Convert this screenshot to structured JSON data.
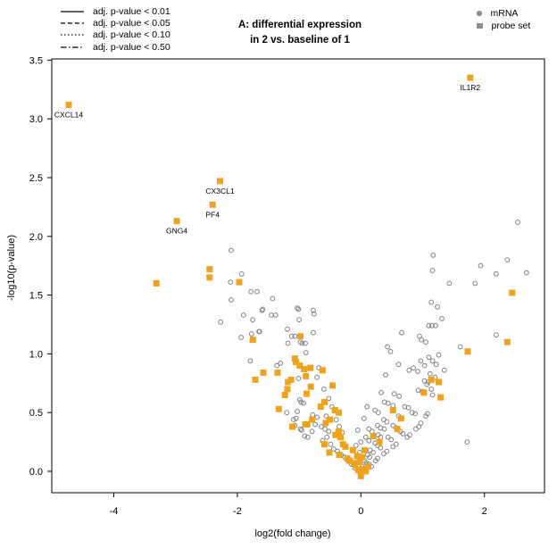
{
  "figure": {
    "title_line1": "A: differential expression",
    "title_line2": "in 2 vs. baseline of 1"
  },
  "line_legend": {
    "items": [
      {
        "style": "solid",
        "label": "adj. p-value < 0.01"
      },
      {
        "style": "dashed",
        "label": "adj. p-value < 0.05"
      },
      {
        "style": "dotted",
        "label": "adj. p-value < 0.10"
      },
      {
        "style": "dashdot",
        "label": "adj. p-value < 0.50"
      }
    ],
    "line_color": "#000000"
  },
  "marker_legend": {
    "items": [
      {
        "marker": "circle",
        "label": "mRNA"
      },
      {
        "marker": "square",
        "label": "probe set"
      }
    ],
    "marker_color": "#8A8E8F"
  },
  "chart_data": {
    "type": "scatter",
    "title": "A: differential expression in 2 vs. baseline of 1",
    "xlabel": "log2(fold change)",
    "ylabel": "-log10(p-value)",
    "xlim": [
      -5.0,
      3.0
    ],
    "ylim": [
      0.0,
      3.5
    ],
    "grid": false,
    "x_ticks": [
      {
        "v": -4,
        "label": "-4"
      },
      {
        "v": -2,
        "label": "-2"
      },
      {
        "v": 0,
        "label": "0"
      },
      {
        "v": 2,
        "label": "2"
      }
    ],
    "y_ticks": [
      {
        "v": 0.0,
        "label": "0.0"
      },
      {
        "v": 0.5,
        "label": "0.5"
      },
      {
        "v": 1.0,
        "label": "1.0"
      },
      {
        "v": 1.5,
        "label": "1.5"
      },
      {
        "v": 2.0,
        "label": "2.0"
      },
      {
        "v": 2.5,
        "label": "2.5"
      },
      {
        "v": 3.0,
        "label": "3.0"
      },
      {
        "v": 3.5,
        "label": "3.5"
      }
    ],
    "labeled_points": [
      {
        "label": "CXCL14",
        "x": -4.73,
        "y": 3.12
      },
      {
        "label": "IL1R2",
        "x": 1.77,
        "y": 3.35
      },
      {
        "label": "CX3CL1",
        "x": -2.28,
        "y": 2.47
      },
      {
        "label": "PF4",
        "x": -2.4,
        "y": 2.27
      },
      {
        "label": "GNG4",
        "x": -2.98,
        "y": 2.13
      }
    ],
    "series": [
      {
        "name": "mRNA",
        "marker": "circle",
        "color": "#7E8385",
        "fill": "none",
        "points": [
          [
            2.54,
            2.12
          ],
          [
            2.37,
            1.8
          ],
          [
            1.94,
            1.75
          ],
          [
            2.19,
            1.68
          ],
          [
            2.68,
            1.69
          ],
          [
            1.85,
            1.6
          ],
          [
            1.43,
            1.6
          ],
          [
            1.17,
            1.84
          ],
          [
            1.16,
            1.71
          ],
          [
            1.14,
            1.44
          ],
          [
            1.24,
            1.4
          ],
          [
            1.31,
            1.3
          ],
          [
            1.1,
            1.24
          ],
          [
            1.15,
            1.24
          ],
          [
            1.21,
            1.24
          ],
          [
            0.66,
            1.18
          ],
          [
            0.95,
            1.15
          ],
          [
            0.98,
            1.12
          ],
          [
            1.05,
            1.1
          ],
          [
            2.19,
            1.16
          ],
          [
            1.61,
            1.06
          ],
          [
            1.72,
            0.25
          ],
          [
            0.97,
            0.41
          ],
          [
            1.1,
            0.97
          ],
          [
            1.16,
            0.94
          ],
          [
            1.22,
            0.91
          ],
          [
            1.26,
            0.99
          ],
          [
            0.97,
            0.94
          ],
          [
            1.03,
            0.9
          ],
          [
            1.12,
            0.83
          ],
          [
            1.2,
            0.8
          ],
          [
            1.07,
            0.74
          ],
          [
            1.14,
            0.7
          ],
          [
            1.16,
            0.65
          ],
          [
            1.35,
            0.86
          ],
          [
            -2.1,
            1.88
          ],
          [
            -1.93,
            1.68
          ],
          [
            -2.11,
            1.61
          ],
          [
            -1.78,
            1.53
          ],
          [
            -1.68,
            1.53
          ],
          [
            -2.1,
            1.46
          ],
          [
            -1.43,
            1.47
          ],
          [
            -1.59,
            1.38
          ],
          [
            -1.9,
            1.33
          ],
          [
            -1.45,
            1.33
          ],
          [
            -1.38,
            1.33
          ],
          [
            -1.01,
            1.38
          ],
          [
            -0.77,
            1.37
          ],
          [
            -0.76,
            1.34
          ],
          [
            -1.0,
            1.29
          ],
          [
            -1.75,
            1.29
          ],
          [
            -2.27,
            1.27
          ],
          [
            -1.94,
            1.14
          ],
          [
            -1.77,
            1.17
          ],
          [
            -1.65,
            1.19
          ],
          [
            -1.19,
            1.21
          ],
          [
            -1.12,
            1.15
          ],
          [
            -1.07,
            1.15
          ],
          [
            -1.18,
            1.09
          ],
          [
            -0.77,
            1.18
          ],
          [
            -0.95,
            1.09
          ],
          [
            -1.64,
            1.19
          ],
          [
            -1.6,
            1.37
          ],
          [
            -1.03,
            1.39
          ],
          [
            -1.79,
            0.94
          ],
          [
            -1.36,
            0.9
          ],
          [
            -1.3,
            0.92
          ],
          [
            -1.2,
            0.5
          ],
          [
            -1.09,
            0.44
          ],
          [
            -1.05,
            0.45
          ],
          [
            -1.03,
            0.51
          ],
          [
            -0.97,
            0.59
          ],
          [
            -0.93,
            0.58
          ],
          [
            -0.99,
            0.61
          ],
          [
            -0.96,
            0.35
          ],
          [
            -0.91,
            0.3
          ],
          [
            -1.01,
            0.79
          ],
          [
            -0.9,
            1.09
          ],
          [
            -0.89,
            1.01
          ],
          [
            -0.71,
            0.8
          ],
          [
            -1.07,
            0.39
          ],
          [
            -0.98,
            0.36
          ],
          [
            -0.78,
            0.48
          ],
          [
            -0.71,
            0.46
          ],
          [
            -0.74,
            0.4
          ],
          [
            -0.64,
            0.38
          ],
          [
            -0.58,
            0.36
          ],
          [
            -0.52,
            0.34
          ],
          [
            -0.79,
            0.34
          ],
          [
            -0.86,
            0.29
          ],
          [
            -0.55,
            0.29
          ],
          [
            -0.62,
            0.26
          ],
          [
            -0.49,
            0.23
          ],
          [
            -0.44,
            0.19
          ],
          [
            -0.38,
            0.17
          ],
          [
            -0.32,
            0.14
          ],
          [
            -0.26,
            0.12
          ],
          [
            -0.21,
            0.09
          ],
          [
            -0.15,
            0.06
          ],
          [
            -0.1,
            0.03
          ],
          [
            -0.6,
            0.7
          ],
          [
            -0.52,
            0.62
          ],
          [
            -0.47,
            0.55
          ],
          [
            -0.4,
            0.44
          ],
          [
            -0.35,
            0.38
          ],
          [
            -0.3,
            0.33
          ],
          [
            -0.68,
            0.88
          ],
          [
            -0.56,
            0.47
          ],
          [
            -0.98,
            1.1
          ],
          [
            0.43,
            1.06
          ],
          [
            0.61,
            0.91
          ],
          [
            0.4,
            0.82
          ],
          [
            0.78,
            0.86
          ],
          [
            0.85,
            0.88
          ],
          [
            0.92,
            0.85
          ],
          [
            1.03,
            0.77
          ],
          [
            1.09,
            0.76
          ],
          [
            0.93,
            0.69
          ],
          [
            0.99,
            0.68
          ],
          [
            0.33,
            0.67
          ],
          [
            0.54,
            0.66
          ],
          [
            0.62,
            0.64
          ],
          [
            0.38,
            0.59
          ],
          [
            0.44,
            0.58
          ],
          [
            0.52,
            0.56
          ],
          [
            0.23,
            0.52
          ],
          [
            0.28,
            0.5
          ],
          [
            0.71,
            0.55
          ],
          [
            0.77,
            0.54
          ],
          [
            0.83,
            0.5
          ],
          [
            0.88,
            0.49
          ],
          [
            0.61,
            0.47
          ],
          [
            0.66,
            0.45
          ],
          [
            0.37,
            0.44
          ],
          [
            0.42,
            0.42
          ],
          [
            0.27,
            0.39
          ],
          [
            0.32,
            0.37
          ],
          [
            0.38,
            0.36
          ],
          [
            0.52,
            0.39
          ],
          [
            0.57,
            0.37
          ],
          [
            0.64,
            0.34
          ],
          [
            0.68,
            0.32
          ],
          [
            0.44,
            0.29
          ],
          [
            0.49,
            0.27
          ],
          [
            0.32,
            0.29
          ],
          [
            0.28,
            0.31
          ],
          [
            0.18,
            0.34
          ],
          [
            0.13,
            0.36
          ],
          [
            0.08,
            0.29
          ],
          [
            0.13,
            0.26
          ],
          [
            0.23,
            0.24
          ],
          [
            0.27,
            0.22
          ],
          [
            0.32,
            0.2
          ],
          [
            0.15,
            0.18
          ],
          [
            0.2,
            0.16
          ],
          [
            0.11,
            0.14
          ],
          [
            0.14,
            0.12
          ],
          [
            0.06,
            0.09
          ],
          [
            0.09,
            0.07
          ],
          [
            0.02,
            0.04
          ],
          [
            0.05,
            0.02
          ],
          [
            0.13,
            0.06
          ],
          [
            0.17,
            0.04
          ],
          [
            0.24,
            0.09
          ],
          [
            0.27,
            0.11
          ],
          [
            0.37,
            0.15
          ],
          [
            0.42,
            0.17
          ],
          [
            0.52,
            0.21
          ],
          [
            0.57,
            0.23
          ],
          [
            0.75,
            0.29
          ],
          [
            0.79,
            0.31
          ],
          [
            0.89,
            0.36
          ],
          [
            0.94,
            0.38
          ],
          [
            1.05,
            0.47
          ],
          [
            1.08,
            0.49
          ],
          [
            0.48,
            1.02
          ],
          [
            0.1,
            0.55
          ],
          [
            0.05,
            0.45
          ],
          [
            -0.05,
            0.35
          ],
          [
            0.0,
            0.25
          ],
          [
            -0.08,
            0.22
          ],
          [
            -0.02,
            0.16
          ]
        ]
      },
      {
        "name": "probe set",
        "marker": "square",
        "color": "#EDA320",
        "points": [
          [
            -4.73,
            3.12
          ],
          [
            1.77,
            3.35
          ],
          [
            -2.28,
            2.47
          ],
          [
            -2.4,
            2.27
          ],
          [
            -2.98,
            2.13
          ],
          [
            -3.31,
            1.6
          ],
          [
            -2.45,
            1.72
          ],
          [
            -2.45,
            1.65
          ],
          [
            -1.97,
            1.61
          ],
          [
            2.45,
            1.52
          ],
          [
            2.37,
            1.1
          ],
          [
            1.73,
            1.02
          ],
          [
            -1.75,
            1.12
          ],
          [
            -0.98,
            1.15
          ],
          [
            -1.07,
            0.96
          ],
          [
            1.14,
            0.78
          ],
          [
            1.26,
            0.76
          ],
          [
            1.02,
            0.67
          ],
          [
            1.29,
            0.63
          ],
          [
            -1.58,
            0.84
          ],
          [
            -1.71,
            0.78
          ],
          [
            -1.35,
            0.84
          ],
          [
            -1.13,
            0.78
          ],
          [
            -1.18,
            0.76
          ],
          [
            -1.19,
            0.7
          ],
          [
            -1.23,
            0.65
          ],
          [
            -1.33,
            0.53
          ],
          [
            -1.11,
            0.38
          ],
          [
            -0.9,
            0.4
          ],
          [
            -0.99,
            0.9
          ],
          [
            -0.92,
            0.87
          ],
          [
            -1.05,
            0.93
          ],
          [
            -0.82,
            0.88
          ],
          [
            -0.62,
            0.86
          ],
          [
            -0.89,
            0.81
          ],
          [
            -0.46,
            0.73
          ],
          [
            -0.81,
            0.72
          ],
          [
            -0.88,
            0.66
          ],
          [
            -0.59,
            0.59
          ],
          [
            -0.65,
            0.55
          ],
          [
            -0.42,
            0.52
          ],
          [
            -0.36,
            0.5
          ],
          [
            -0.5,
            0.44
          ],
          [
            -0.79,
            0.44
          ],
          [
            -0.57,
            0.41
          ],
          [
            -0.87,
            0.4
          ],
          [
            -0.36,
            0.34
          ],
          [
            -0.41,
            0.31
          ],
          [
            -0.33,
            0.29
          ],
          [
            -0.59,
            0.23
          ],
          [
            -0.29,
            0.23
          ],
          [
            -0.25,
            0.21
          ],
          [
            -0.51,
            0.16
          ],
          [
            -0.35,
            0.14
          ],
          [
            -0.22,
            0.11
          ],
          [
            -0.18,
            0.09
          ],
          [
            -0.11,
            0.07
          ],
          [
            -0.09,
            0.05
          ],
          [
            -0.04,
            0.01
          ],
          [
            0.0,
            0.0
          ],
          [
            0.04,
            0.02
          ],
          [
            0.08,
            0.0
          ],
          [
            0.12,
            0.04
          ],
          [
            -0.06,
            0.13
          ],
          [
            -0.02,
            0.08
          ],
          [
            0.02,
            0.12
          ],
          [
            -0.13,
            0.18
          ],
          [
            0.06,
            0.18
          ],
          [
            0.0,
            -0.04
          ],
          [
            0.52,
            0.52
          ],
          [
            0.65,
            0.45
          ],
          [
            0.59,
            0.36
          ],
          [
            0.3,
            0.25
          ],
          [
            0.2,
            0.3
          ]
        ]
      }
    ]
  }
}
